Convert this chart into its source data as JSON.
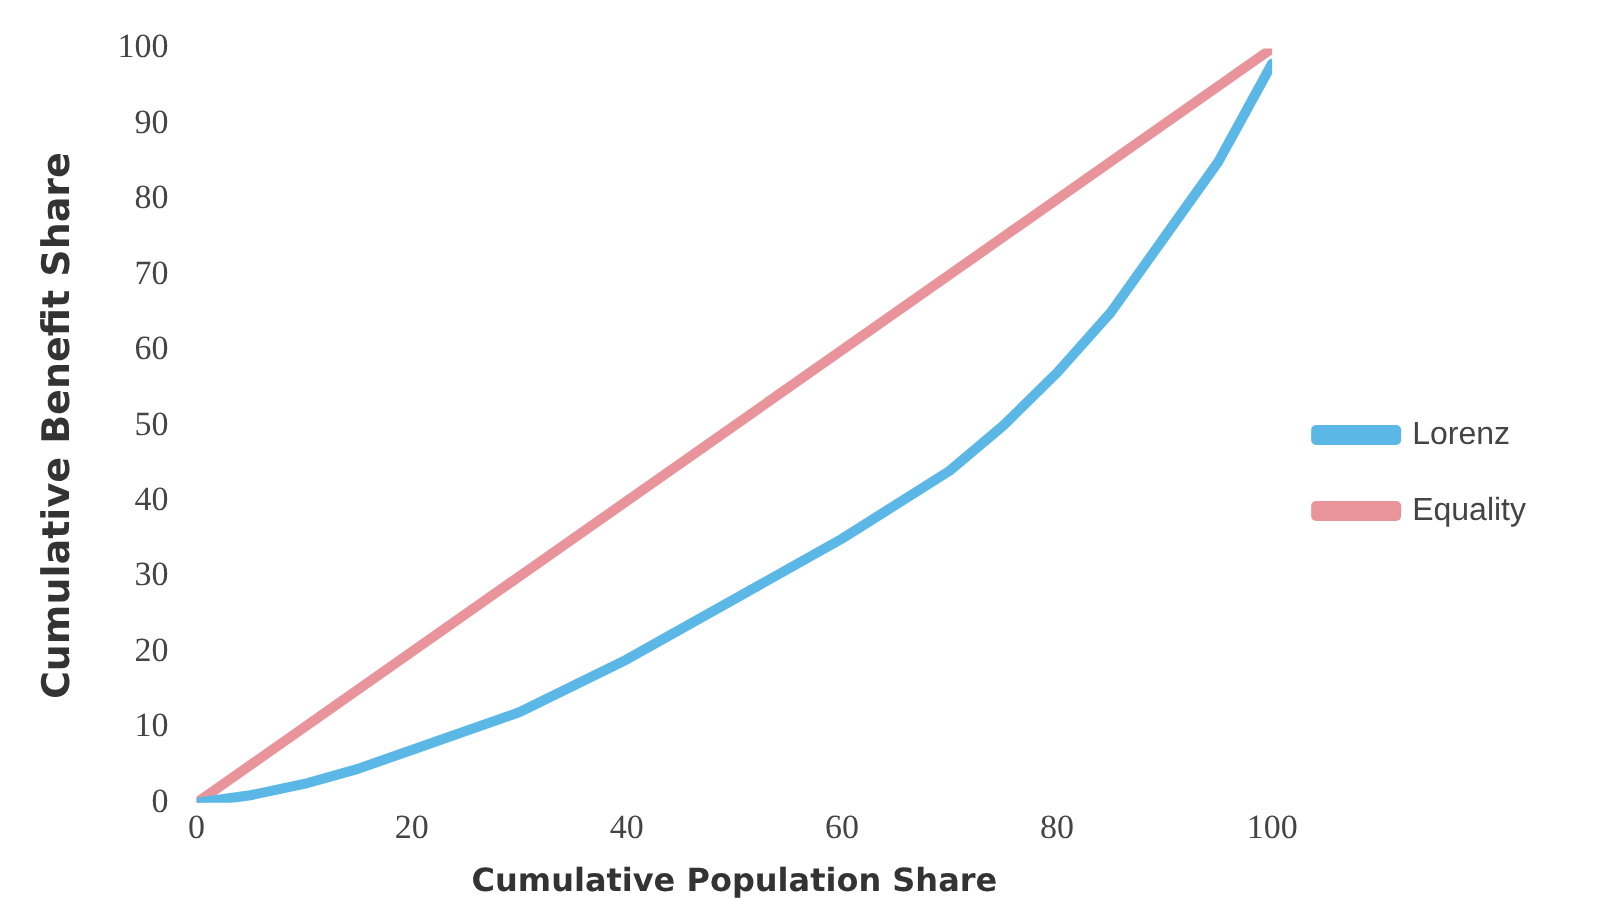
{
  "chart_data": {
    "type": "line",
    "xlabel": "Cumulative Population Share",
    "ylabel": "Cumulative Benefit Share",
    "xlim": [
      0,
      100
    ],
    "xticks": [
      0,
      20,
      40,
      60,
      80,
      100
    ],
    "ylim": [
      0,
      100
    ],
    "yticks": [
      0,
      10,
      20,
      30,
      40,
      50,
      60,
      70,
      80,
      90,
      100
    ],
    "grid": false,
    "legend": "right",
    "marker": "none",
    "line_style": "solid",
    "series": [
      {
        "name": "Lorenz",
        "color": "#5bb8e6",
        "x": [
          0,
          5,
          10,
          15,
          20,
          30,
          40,
          50,
          60,
          70,
          75,
          80,
          85,
          90,
          95,
          100
        ],
        "values": [
          0,
          1,
          2.5,
          4.5,
          7,
          12,
          19,
          27,
          35,
          44,
          50,
          57,
          65,
          75,
          85,
          98
        ]
      },
      {
        "name": "Equality",
        "color": "#e8949a",
        "x": [
          0,
          100
        ],
        "values": [
          0,
          100
        ]
      }
    ]
  }
}
